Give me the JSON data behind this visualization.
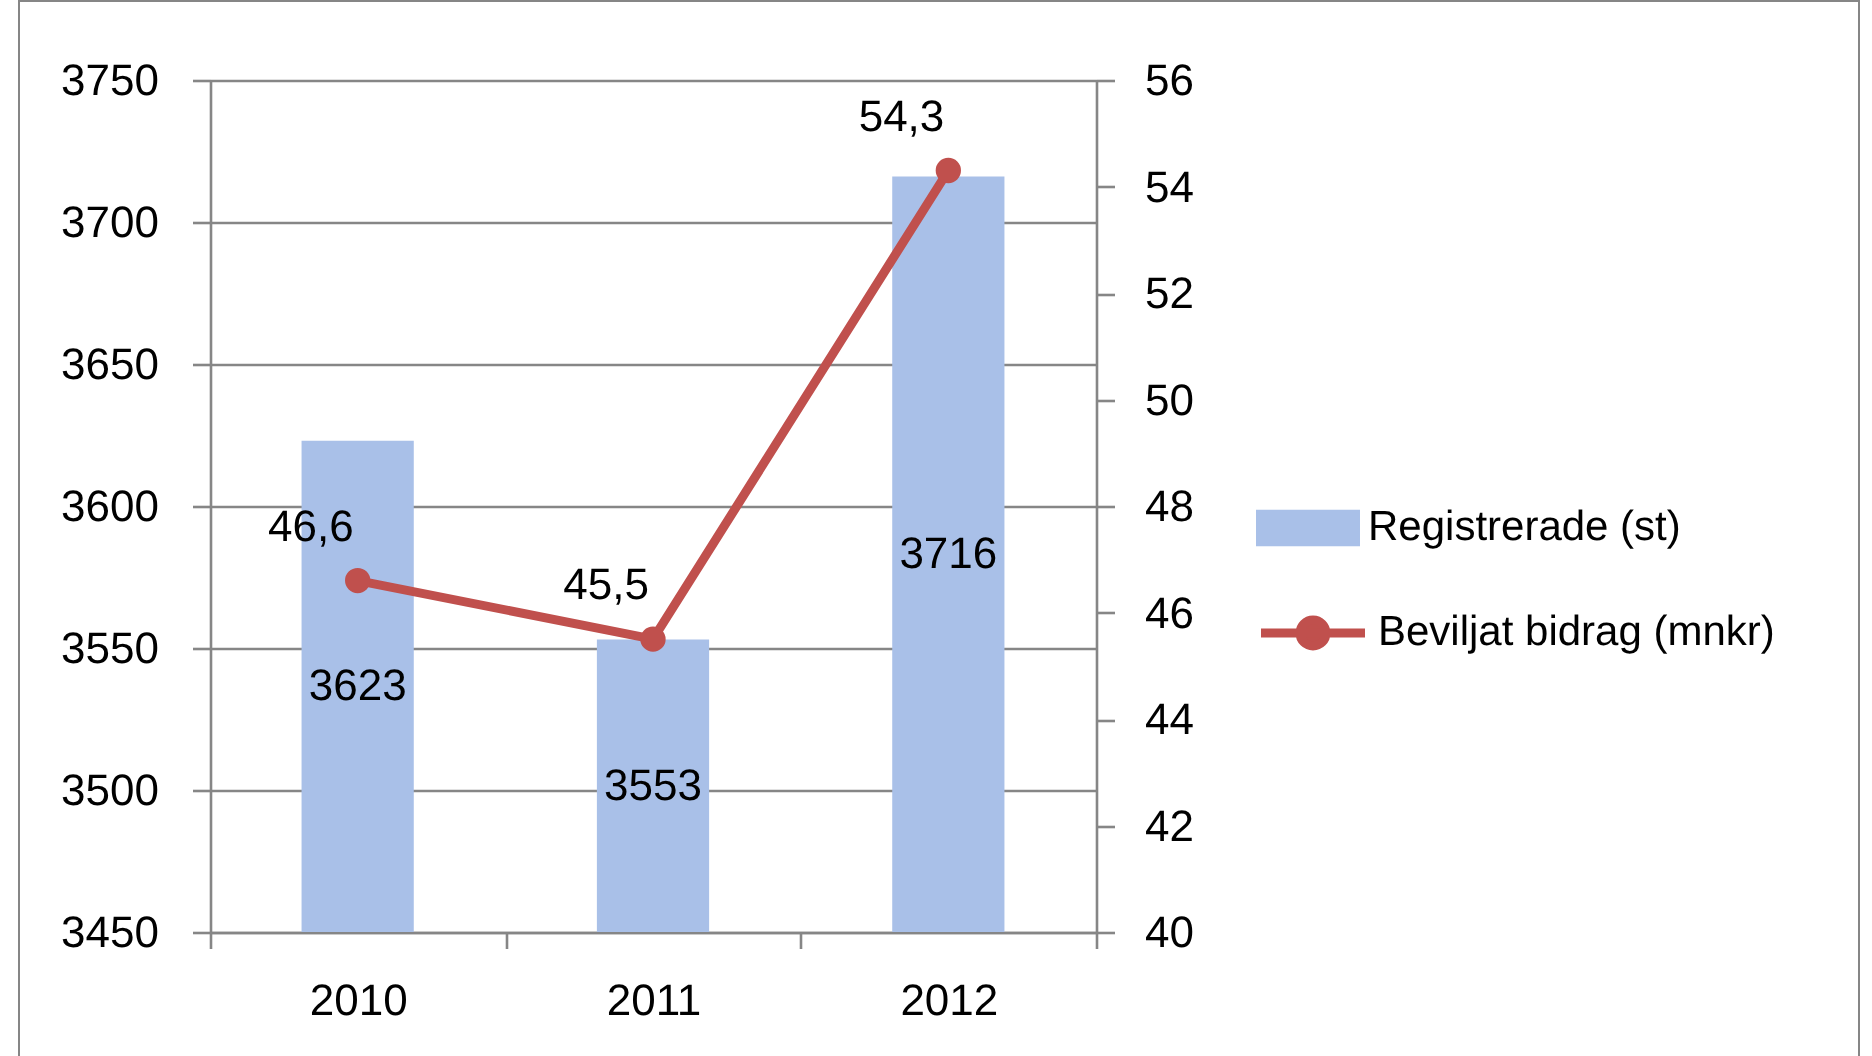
{
  "chart_data": {
    "type": "bar",
    "categories": [
      "2010",
      "2011",
      "2012"
    ],
    "series": [
      {
        "name": "Registrerade (st)",
        "color": "#a9c0e8",
        "values": [
          3623,
          3553,
          3716
        ],
        "value_labels": [
          "3623",
          "3553",
          "3716"
        ]
      },
      {
        "name": "Beviljat bidrag (mnkr)",
        "type": "line",
        "axis": "y2",
        "color": "#c0504d",
        "values": [
          46.6,
          45.5,
          54.3
        ],
        "value_labels": [
          "46,6",
          "45,5",
          "54,3"
        ]
      }
    ],
    "ylim": [
      3450,
      3750
    ],
    "yticks": [
      3450,
      3500,
      3550,
      3600,
      3650,
      3700,
      3750
    ],
    "y2lim": [
      40,
      56
    ],
    "y2ticks": [
      40,
      42,
      44,
      46,
      48,
      50,
      52,
      54,
      56
    ],
    "grid": "y",
    "legend": "right",
    "marker": "circle"
  }
}
